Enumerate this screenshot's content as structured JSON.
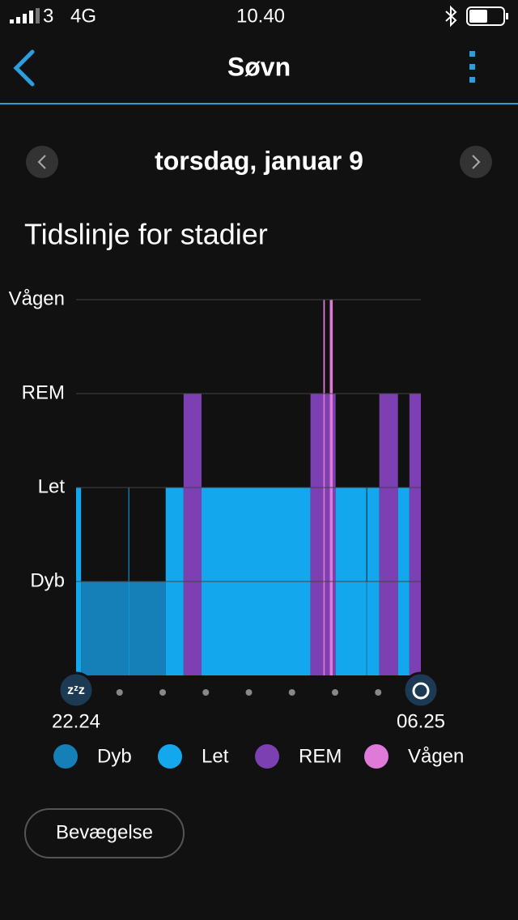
{
  "status_bar": {
    "carrier": "3",
    "network": "4G",
    "time": "10.40"
  },
  "header": {
    "title": "Søvn"
  },
  "date_nav": {
    "date": "torsdag, januar 9"
  },
  "section": {
    "title": "Tidslinje for stadier"
  },
  "chart_data": {
    "type": "timeline",
    "categories": [
      "Dyb",
      "Let",
      "REM",
      "Vågen"
    ],
    "xlim": [
      0,
      481
    ],
    "xticks": [
      {
        "value": 0,
        "label": "22.24"
      },
      {
        "value": 481,
        "label": "06.25"
      }
    ],
    "grid": true,
    "series": [
      {
        "name": "Dyb",
        "color": "#157fb7",
        "start": [
          7,
          74,
          405
        ],
        "end": [
          73,
          125,
          406
        ]
      },
      {
        "name": "Let",
        "color": "#13a8ee",
        "start": [
          0,
          73,
          125,
          175,
          362,
          406,
          449
        ],
        "end": [
          7,
          74,
          150,
          327,
          405,
          423,
          465
        ]
      },
      {
        "name": "REM",
        "color": "#7c40b2",
        "start": [
          150,
          327,
          347,
          358,
          423,
          465
        ],
        "end": [
          175,
          345,
          354,
          362,
          449,
          481
        ]
      },
      {
        "name": "Vågen",
        "color": "#e07ad8",
        "start": [
          345,
          354
        ],
        "end": [
          347,
          358
        ]
      }
    ]
  },
  "button": {
    "label": "Bevægelse"
  }
}
